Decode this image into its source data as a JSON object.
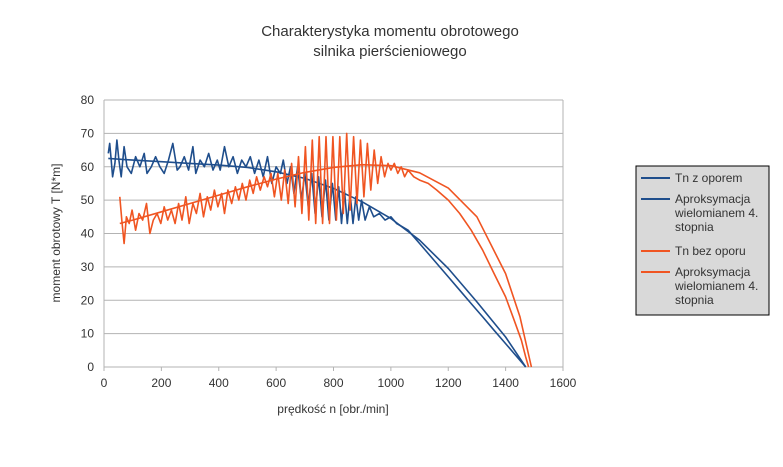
{
  "chart_data": {
    "type": "line",
    "title_lines": [
      "Charakterystyka momentu obrotowego",
      "silnika pierścieniowego"
    ],
    "xlabel": "prędkość n [obr./min]",
    "ylabel": "moment obrotowy T [N*m]",
    "xlim": [
      0,
      1600
    ],
    "ylim": [
      0,
      80
    ],
    "xticks": [
      "0",
      "200",
      "400",
      "600",
      "800",
      "1000",
      "1200",
      "1400",
      "1600"
    ],
    "yticks": [
      "0",
      "10",
      "20",
      "30",
      "40",
      "50",
      "60",
      "70",
      "80"
    ],
    "grid": true,
    "legend_position": "right",
    "legend": [
      {
        "label": "Tn z oporem",
        "color": "#1f4e8c"
      },
      {
        "label": "Aproksymacja wielomianem 4. stopnia",
        "color": "#1f4e8c"
      },
      {
        "label": "Tn bez oporu",
        "color": "#f05522"
      },
      {
        "label": "Aproksymacja wielomianem 4. stopnia",
        "color": "#f05522"
      }
    ],
    "series": [
      {
        "name": "Tn z oporem",
        "color": "#1f4e8c",
        "points": [
          [
            15,
            64
          ],
          [
            20,
            67
          ],
          [
            25,
            62
          ],
          [
            30,
            57
          ],
          [
            38,
            61
          ],
          [
            45,
            68
          ],
          [
            52,
            62
          ],
          [
            60,
            57
          ],
          [
            70,
            66
          ],
          [
            80,
            60
          ],
          [
            95,
            58
          ],
          [
            110,
            63
          ],
          [
            125,
            60
          ],
          [
            140,
            64
          ],
          [
            150,
            58
          ],
          [
            165,
            60
          ],
          [
            180,
            63
          ],
          [
            195,
            60
          ],
          [
            210,
            58
          ],
          [
            225,
            62
          ],
          [
            240,
            67
          ],
          [
            255,
            59
          ],
          [
            265,
            60
          ],
          [
            280,
            63
          ],
          [
            295,
            59
          ],
          [
            310,
            66
          ],
          [
            320,
            58
          ],
          [
            335,
            62
          ],
          [
            350,
            60
          ],
          [
            365,
            64
          ],
          [
            380,
            59
          ],
          [
            395,
            62
          ],
          [
            405,
            59
          ],
          [
            420,
            66
          ],
          [
            435,
            60
          ],
          [
            450,
            63
          ],
          [
            465,
            58
          ],
          [
            480,
            62
          ],
          [
            495,
            60
          ],
          [
            510,
            63
          ],
          [
            525,
            58
          ],
          [
            540,
            62
          ],
          [
            555,
            57
          ],
          [
            570,
            63
          ],
          [
            585,
            55
          ],
          [
            600,
            60
          ],
          [
            615,
            58
          ],
          [
            625,
            62
          ],
          [
            638,
            55
          ],
          [
            650,
            60
          ],
          [
            662,
            52
          ],
          [
            675,
            60
          ],
          [
            688,
            50
          ],
          [
            700,
            58
          ],
          [
            712,
            48
          ],
          [
            724,
            58
          ],
          [
            736,
            46
          ],
          [
            748,
            57
          ],
          [
            760,
            45
          ],
          [
            772,
            56
          ],
          [
            784,
            44
          ],
          [
            796,
            55
          ],
          [
            808,
            44
          ],
          [
            818,
            54
          ],
          [
            828,
            43
          ],
          [
            838,
            53
          ],
          [
            848,
            43
          ],
          [
            858,
            52
          ],
          [
            868,
            43
          ],
          [
            878,
            51
          ],
          [
            888,
            44
          ],
          [
            898,
            50
          ],
          [
            910,
            44
          ],
          [
            925,
            48
          ],
          [
            940,
            45
          ],
          [
            960,
            46
          ],
          [
            980,
            44
          ],
          [
            1000,
            45
          ],
          [
            1020,
            43
          ],
          [
            1040,
            42
          ],
          [
            1060,
            41
          ],
          [
            1080,
            39
          ],
          [
            1100,
            37
          ],
          [
            1130,
            34
          ],
          [
            1160,
            31
          ],
          [
            1200,
            27
          ],
          [
            1240,
            23
          ],
          [
            1280,
            19
          ],
          [
            1320,
            15
          ],
          [
            1360,
            11
          ],
          [
            1400,
            7
          ],
          [
            1430,
            4
          ],
          [
            1450,
            2
          ],
          [
            1465,
            0.5
          ],
          [
            1470,
            0
          ]
        ]
      },
      {
        "name": "Aproksymacja wielomianem 4. stopnia",
        "color": "#1f4e8c",
        "points": [
          [
            15,
            62.5
          ],
          [
            100,
            62
          ],
          [
            200,
            61.5
          ],
          [
            300,
            61
          ],
          [
            400,
            60.5
          ],
          [
            500,
            59.8
          ],
          [
            600,
            58.5
          ],
          [
            700,
            56.5
          ],
          [
            800,
            53.5
          ],
          [
            900,
            49.5
          ],
          [
            1000,
            44.5
          ],
          [
            1100,
            38
          ],
          [
            1200,
            29.5
          ],
          [
            1300,
            19.5
          ],
          [
            1400,
            9
          ],
          [
            1470,
            0
          ]
        ]
      },
      {
        "name": "Tn bez oporu",
        "color": "#f05522",
        "points": [
          [
            55,
            51
          ],
          [
            62,
            44
          ],
          [
            70,
            37
          ],
          [
            78,
            45
          ],
          [
            88,
            43
          ],
          [
            98,
            47
          ],
          [
            110,
            41
          ],
          [
            122,
            46
          ],
          [
            135,
            44
          ],
          [
            148,
            49
          ],
          [
            160,
            40
          ],
          [
            172,
            44
          ],
          [
            185,
            46
          ],
          [
            198,
            43
          ],
          [
            210,
            48
          ],
          [
            222,
            44
          ],
          [
            235,
            47
          ],
          [
            248,
            43
          ],
          [
            260,
            49
          ],
          [
            272,
            44
          ],
          [
            285,
            51
          ],
          [
            297,
            43
          ],
          [
            310,
            49
          ],
          [
            322,
            46
          ],
          [
            335,
            52
          ],
          [
            347,
            45
          ],
          [
            360,
            51
          ],
          [
            372,
            47
          ],
          [
            385,
            53
          ],
          [
            397,
            48
          ],
          [
            410,
            52
          ],
          [
            420,
            46
          ],
          [
            432,
            53
          ],
          [
            445,
            49
          ],
          [
            458,
            54
          ],
          [
            470,
            50
          ],
          [
            482,
            55
          ],
          [
            495,
            50
          ],
          [
            508,
            56
          ],
          [
            520,
            52
          ],
          [
            532,
            57
          ],
          [
            545,
            53
          ],
          [
            558,
            57
          ],
          [
            570,
            54
          ],
          [
            582,
            58
          ],
          [
            594,
            51
          ],
          [
            606,
            58
          ],
          [
            618,
            50
          ],
          [
            630,
            59
          ],
          [
            642,
            49
          ],
          [
            654,
            61
          ],
          [
            666,
            48
          ],
          [
            678,
            63
          ],
          [
            690,
            46
          ],
          [
            702,
            66
          ],
          [
            714,
            44
          ],
          [
            726,
            68
          ],
          [
            738,
            43
          ],
          [
            750,
            69
          ],
          [
            762,
            43
          ],
          [
            774,
            69
          ],
          [
            786,
            43
          ],
          [
            798,
            69
          ],
          [
            810,
            44
          ],
          [
            822,
            69
          ],
          [
            834,
            46
          ],
          [
            846,
            70
          ],
          [
            858,
            47
          ],
          [
            870,
            69
          ],
          [
            882,
            49
          ],
          [
            894,
            68
          ],
          [
            906,
            51
          ],
          [
            918,
            67
          ],
          [
            930,
            53
          ],
          [
            942,
            65
          ],
          [
            954,
            55
          ],
          [
            966,
            63
          ],
          [
            978,
            57
          ],
          [
            990,
            61
          ],
          [
            1000,
            59
          ],
          [
            1012,
            61
          ],
          [
            1024,
            58
          ],
          [
            1036,
            60
          ],
          [
            1048,
            57
          ],
          [
            1060,
            59
          ],
          [
            1080,
            57
          ],
          [
            1100,
            56
          ],
          [
            1130,
            55
          ],
          [
            1160,
            53
          ],
          [
            1200,
            50
          ],
          [
            1240,
            46
          ],
          [
            1280,
            41
          ],
          [
            1320,
            35
          ],
          [
            1360,
            28
          ],
          [
            1400,
            21
          ],
          [
            1430,
            14
          ],
          [
            1455,
            8
          ],
          [
            1470,
            3
          ],
          [
            1480,
            0
          ]
        ]
      },
      {
        "name": "Aproksymacja wielomianem 4. stopnia",
        "color": "#f05522",
        "points": [
          [
            55,
            43
          ],
          [
            100,
            44
          ],
          [
            200,
            46.5
          ],
          [
            300,
            49
          ],
          [
            400,
            51.5
          ],
          [
            500,
            54
          ],
          [
            600,
            56.3
          ],
          [
            700,
            58.3
          ],
          [
            800,
            59.8
          ],
          [
            900,
            60.6
          ],
          [
            1000,
            60.3
          ],
          [
            1100,
            58.2
          ],
          [
            1200,
            53.6
          ],
          [
            1300,
            45
          ],
          [
            1400,
            28
          ],
          [
            1450,
            15
          ],
          [
            1490,
            0
          ]
        ]
      }
    ]
  }
}
